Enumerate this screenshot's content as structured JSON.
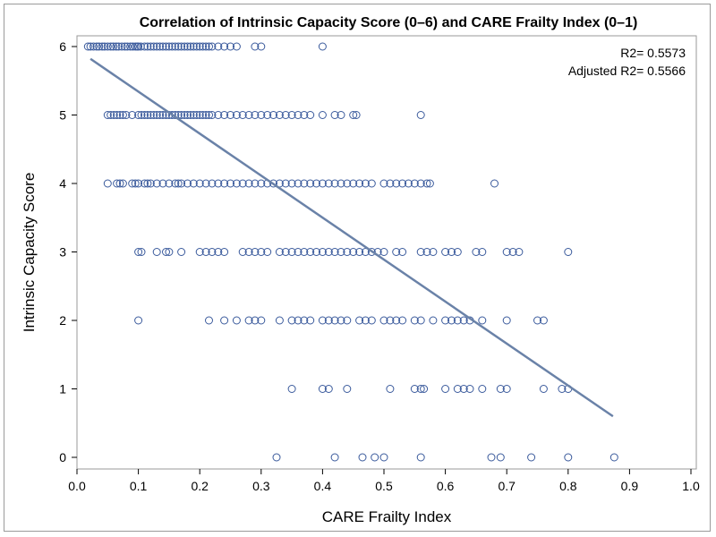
{
  "chart_data": {
    "type": "scatter",
    "title": "Correlation of Intrinsic Capacity Score (0–6) and CARE Frailty Index (0–1)",
    "xlabel": "CARE Frailty Index",
    "ylabel": "Intrinsic Capacity Score",
    "xlim": [
      0,
      1
    ],
    "ylim": [
      0,
      6
    ],
    "xticks": [
      "0.0",
      "0.1",
      "0.2",
      "0.3",
      "0.4",
      "0.5",
      "0.6",
      "0.7",
      "0.8",
      "0.9",
      "1.0"
    ],
    "yticks": [
      "0",
      "1",
      "2",
      "3",
      "4",
      "5",
      "6"
    ],
    "grid": false,
    "marker": "open-circle",
    "colors": {
      "points": "#3a5a9c",
      "fit_line": "#6a82a8",
      "frame": "#9a9a9a"
    },
    "annotations": {
      "r2": "R2= 0.5573",
      "adj_r2": "Adjusted R2= 0.5566"
    },
    "fit_line": {
      "x": [
        0.022,
        0.873
      ],
      "y": [
        5.82,
        0.6
      ]
    },
    "points_by_y": {
      "6": [
        0.018,
        0.022,
        0.027,
        0.032,
        0.036,
        0.041,
        0.045,
        0.05,
        0.055,
        0.059,
        0.064,
        0.068,
        0.073,
        0.078,
        0.082,
        0.087,
        0.091,
        0.095,
        0.098,
        0.1,
        0.104,
        0.11,
        0.115,
        0.12,
        0.125,
        0.13,
        0.135,
        0.14,
        0.145,
        0.15,
        0.155,
        0.16,
        0.165,
        0.17,
        0.175,
        0.18,
        0.185,
        0.19,
        0.195,
        0.2,
        0.205,
        0.21,
        0.215,
        0.22,
        0.23,
        0.24,
        0.25,
        0.26,
        0.29,
        0.3,
        0.4
      ],
      "5": [
        0.05,
        0.055,
        0.06,
        0.065,
        0.07,
        0.075,
        0.08,
        0.09,
        0.1,
        0.105,
        0.11,
        0.115,
        0.12,
        0.125,
        0.13,
        0.135,
        0.14,
        0.145,
        0.15,
        0.155,
        0.16,
        0.165,
        0.17,
        0.175,
        0.18,
        0.185,
        0.19,
        0.195,
        0.2,
        0.205,
        0.21,
        0.215,
        0.22,
        0.23,
        0.24,
        0.25,
        0.26,
        0.27,
        0.28,
        0.29,
        0.3,
        0.31,
        0.32,
        0.33,
        0.34,
        0.35,
        0.36,
        0.37,
        0.38,
        0.4,
        0.42,
        0.43,
        0.45,
        0.455,
        0.56
      ],
      "4": [
        0.05,
        0.065,
        0.07,
        0.075,
        0.09,
        0.095,
        0.1,
        0.11,
        0.115,
        0.12,
        0.13,
        0.14,
        0.15,
        0.16,
        0.165,
        0.17,
        0.18,
        0.19,
        0.2,
        0.21,
        0.22,
        0.23,
        0.24,
        0.25,
        0.26,
        0.27,
        0.28,
        0.29,
        0.3,
        0.31,
        0.32,
        0.33,
        0.34,
        0.35,
        0.36,
        0.37,
        0.38,
        0.39,
        0.4,
        0.41,
        0.42,
        0.43,
        0.44,
        0.45,
        0.46,
        0.47,
        0.48,
        0.5,
        0.51,
        0.52,
        0.53,
        0.54,
        0.55,
        0.56,
        0.57,
        0.575,
        0.68
      ],
      "3": [
        0.1,
        0.105,
        0.13,
        0.145,
        0.15,
        0.17,
        0.2,
        0.21,
        0.22,
        0.23,
        0.24,
        0.27,
        0.28,
        0.29,
        0.3,
        0.31,
        0.33,
        0.34,
        0.35,
        0.36,
        0.37,
        0.38,
        0.39,
        0.4,
        0.41,
        0.42,
        0.43,
        0.44,
        0.45,
        0.46,
        0.47,
        0.48,
        0.49,
        0.5,
        0.52,
        0.53,
        0.56,
        0.57,
        0.58,
        0.6,
        0.61,
        0.62,
        0.65,
        0.66,
        0.7,
        0.71,
        0.72,
        0.8
      ],
      "2": [
        0.1,
        0.215,
        0.24,
        0.26,
        0.28,
        0.29,
        0.3,
        0.33,
        0.35,
        0.36,
        0.37,
        0.38,
        0.4,
        0.41,
        0.42,
        0.43,
        0.44,
        0.46,
        0.47,
        0.48,
        0.5,
        0.51,
        0.52,
        0.53,
        0.55,
        0.56,
        0.58,
        0.6,
        0.61,
        0.62,
        0.63,
        0.64,
        0.66,
        0.7,
        0.75,
        0.76
      ],
      "1": [
        0.35,
        0.4,
        0.41,
        0.44,
        0.51,
        0.55,
        0.56,
        0.565,
        0.6,
        0.62,
        0.63,
        0.64,
        0.66,
        0.69,
        0.7,
        0.76,
        0.79,
        0.8
      ],
      "0": [
        0.325,
        0.42,
        0.465,
        0.485,
        0.5,
        0.56,
        0.675,
        0.69,
        0.74,
        0.8,
        0.875
      ]
    }
  }
}
